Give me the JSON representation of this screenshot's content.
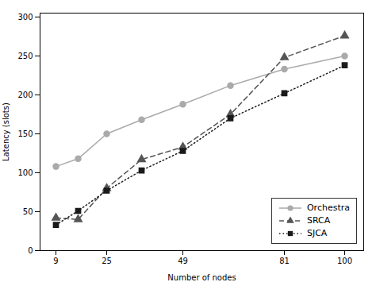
{
  "chart_data": {
    "type": "line",
    "x": [
      9,
      16,
      25,
      36,
      49,
      64,
      81,
      100
    ],
    "series": [
      {
        "name": "Orchestra",
        "color": "#aaaaaa",
        "marker": "circle",
        "line_style": "solid",
        "values": [
          108,
          118,
          150,
          168,
          188,
          212,
          233,
          250
        ]
      },
      {
        "name": "SRCA",
        "color": "#555555",
        "marker": "triangle",
        "line_style": "dashed",
        "values": [
          42,
          40,
          80,
          117,
          133,
          175,
          248,
          276
        ]
      },
      {
        "name": "SJCA",
        "color": "#1a1a1a",
        "marker": "square",
        "line_style": "dotted",
        "values": [
          33,
          51,
          77,
          103,
          128,
          170,
          202,
          238
        ]
      }
    ],
    "xlabel": "Number of nodes",
    "ylabel": "Latency (slots)",
    "xlim": [
      4,
      106
    ],
    "ylim": [
      0,
      305
    ],
    "xticks": [
      9,
      25,
      49,
      81,
      100
    ],
    "yticks": [
      0,
      50,
      100,
      150,
      200,
      250,
      300
    ],
    "legend": "lower right"
  }
}
